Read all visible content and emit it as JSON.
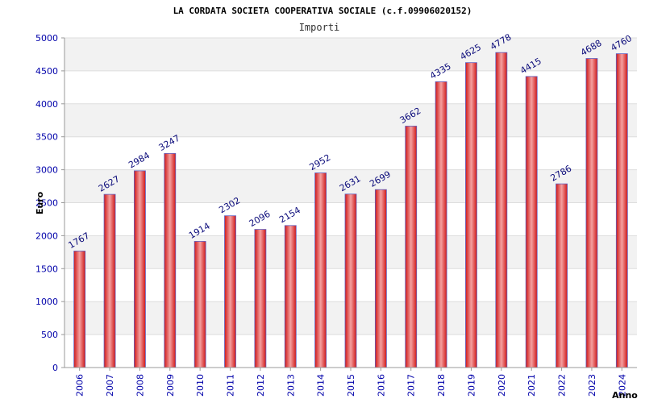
{
  "chart_data": {
    "type": "bar",
    "title": "LA CORDATA SOCIETA COOPERATIVA SOCIALE (c.f.09906020152)",
    "subtitle": "Importi",
    "xlabel": "Anno",
    "ylabel": "Euro",
    "ylim": [
      0,
      5000
    ],
    "yticks": [
      0,
      500,
      1000,
      1500,
      2000,
      2500,
      3000,
      3500,
      4000,
      4500,
      5000
    ],
    "categories": [
      "2006",
      "2007",
      "2008",
      "2009",
      "2010",
      "2011",
      "2012",
      "2013",
      "2014",
      "2015",
      "2016",
      "2017",
      "2018",
      "2019",
      "2020",
      "2021",
      "2022",
      "2023",
      "2024"
    ],
    "values": [
      1767,
      2627,
      2984,
      3247,
      1914,
      2302,
      2096,
      2154,
      2952,
      2631,
      2699,
      3662,
      4335,
      4625,
      4778,
      4415,
      2786,
      4688,
      4760
    ],
    "grid": true,
    "legend": "none",
    "colors": {
      "bar_center": "#f4a0a0",
      "bar_edge": "#d01818",
      "bar_stroke": "#6060c0",
      "band": "#f2f2f2",
      "grid": "#dddddd",
      "tick_text": "#0000aa",
      "label_text": "#0a0a7a"
    }
  }
}
